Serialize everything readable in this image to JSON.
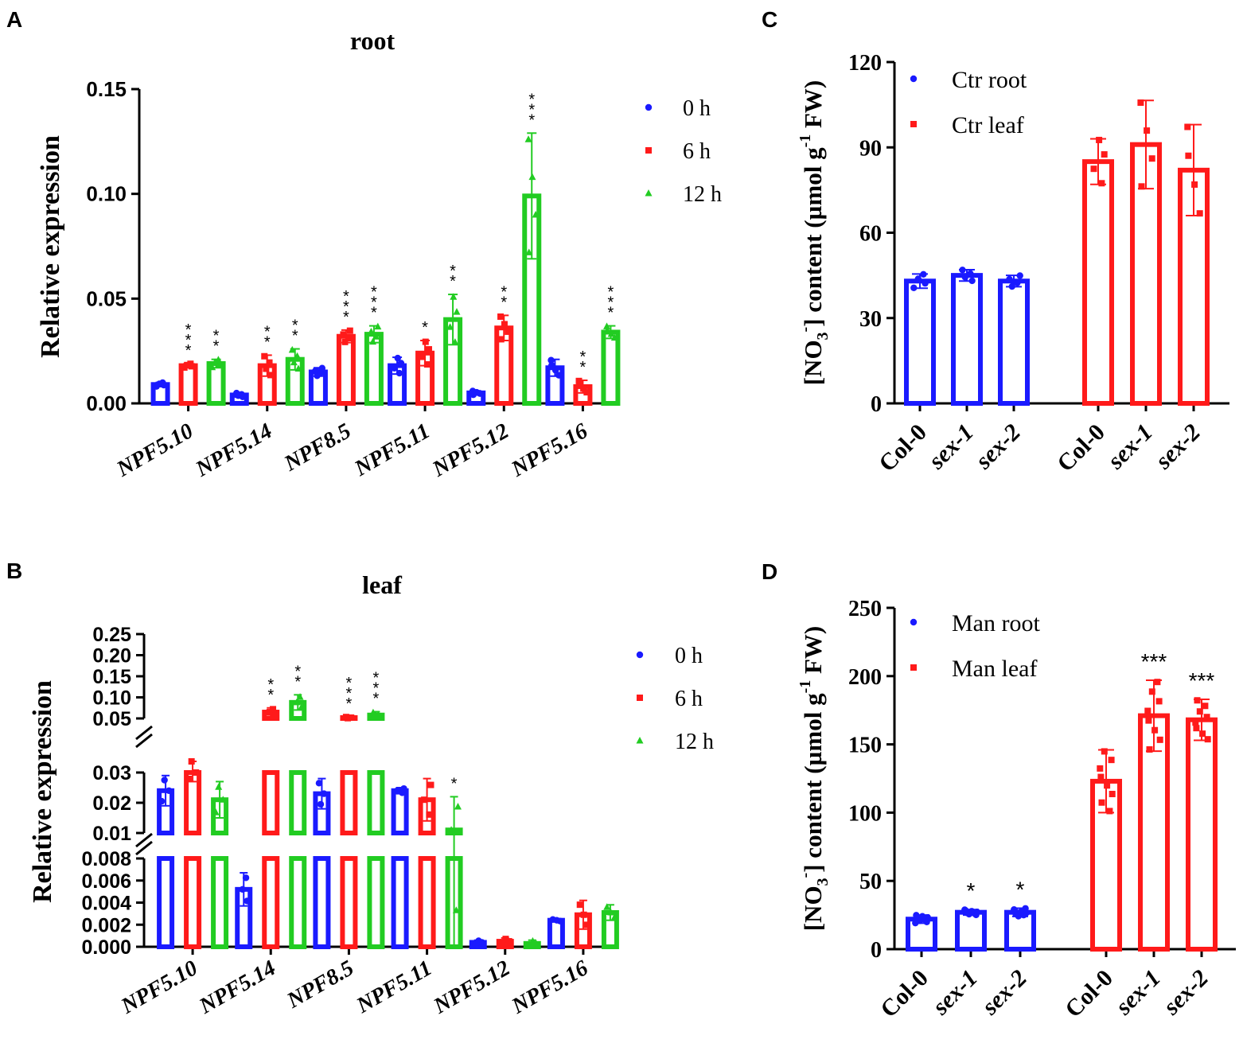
{
  "colors": {
    "blue": "#1a1aff",
    "red": "#ff1a1a",
    "green": "#22cc22",
    "axis": "#000000"
  },
  "chart_data": [
    {
      "panel_label": "A",
      "type": "bar",
      "title": "root",
      "xlabel": "",
      "ylabel": "Relative expression",
      "ylim": [
        0,
        0.15
      ],
      "yticks": [
        "0.00",
        "0.05",
        "0.10",
        "0.15"
      ],
      "categories": [
        "NPF5.10",
        "NPF5.14",
        "NPF8.5",
        "NPF5.11",
        "NPF5.12",
        "NPF5.16"
      ],
      "legend": [
        "0 h",
        "6 h",
        "12 h"
      ],
      "legend_position": "top-right",
      "series": [
        {
          "name": "0 h",
          "color": "blue",
          "marker": "circle",
          "values": [
            0.009,
            0.004,
            0.015,
            0.018,
            0.005,
            0.017
          ],
          "errors": [
            0.001,
            0.001,
            0.002,
            0.004,
            0.001,
            0.004
          ],
          "significance": [
            "",
            "",
            "",
            "",
            "",
            ""
          ]
        },
        {
          "name": "6 h",
          "color": "red",
          "marker": "square",
          "values": [
            0.018,
            0.018,
            0.032,
            0.024,
            0.036,
            0.008
          ],
          "errors": [
            0.001,
            0.005,
            0.003,
            0.006,
            0.006,
            0.003
          ],
          "significance": [
            "***",
            "**",
            "***",
            "*",
            "**",
            "**"
          ]
        },
        {
          "name": "12 h",
          "color": "green",
          "marker": "triangle",
          "values": [
            0.019,
            0.021,
            0.033,
            0.04,
            0.099,
            0.034
          ],
          "errors": [
            0.002,
            0.005,
            0.004,
            0.012,
            0.03,
            0.003
          ],
          "significance": [
            "**",
            "**",
            "***",
            "**",
            "***",
            "***"
          ]
        }
      ]
    },
    {
      "panel_label": "B",
      "type": "bar",
      "title": "leaf",
      "xlabel": "",
      "ylabel": "Relative expression",
      "ylim": [
        0,
        0.25
      ],
      "axis_breaks": [
        [
          0.008,
          0.01
        ],
        [
          0.03,
          0.05
        ]
      ],
      "yticks": [
        "0.000",
        "0.002",
        "0.004",
        "0.006",
        "0.008",
        "0.01",
        "0.02",
        "0.03",
        "0.05",
        "0.10",
        "0.15",
        "0.20",
        "0.25"
      ],
      "categories": [
        "NPF5.10",
        "NPF5.14",
        "NPF8.5",
        "NPF5.11",
        "NPF5.12",
        "NPF5.16"
      ],
      "legend": [
        "0 h",
        "6 h",
        "12 h"
      ],
      "legend_position": "top-right",
      "series": [
        {
          "name": "0 h",
          "color": "blue",
          "marker": "circle",
          "values": [
            0.024,
            0.0052,
            0.023,
            0.024,
            0.0004,
            0.0024
          ],
          "errors": [
            0.005,
            0.0015,
            0.005,
            0.001,
            0.0002,
            0.0001
          ],
          "significance": [
            "",
            "",
            "",
            "",
            "",
            ""
          ]
        },
        {
          "name": "6 h",
          "color": "red",
          "marker": "square",
          "values": [
            0.03,
            0.065,
            0.052,
            0.021,
            0.0005,
            0.0029
          ],
          "errors": [
            0.003,
            0.01,
            0.002,
            0.007,
            0.0003,
            0.0013
          ],
          "significance": [
            "",
            "**",
            "***",
            "",
            "",
            ""
          ]
        },
        {
          "name": "12 h",
          "color": "green",
          "marker": "triangle",
          "values": [
            0.021,
            0.088,
            0.058,
            0.011,
            0.0003,
            0.0031
          ],
          "errors": [
            0.006,
            0.018,
            0.008,
            0.011,
            0.0003,
            0.0007
          ],
          "significance": [
            "",
            "**",
            "***",
            "*",
            "",
            ""
          ]
        }
      ]
    },
    {
      "panel_label": "C",
      "type": "bar",
      "title": "",
      "xlabel": "",
      "ylabel_pre": "[NO",
      "ylabel_sub": "3",
      "ylabel_sup1": "-",
      "ylabel_mid": "] content (µmol g",
      "ylabel_sup2": "-1",
      "ylabel_post": " FW)",
      "ylim": [
        0,
        120
      ],
      "yticks": [
        "0",
        "30",
        "60",
        "90",
        "120"
      ],
      "categories": [
        "Col-0",
        "sex-1",
        "sex-2",
        "Col-0",
        "sex-1",
        "sex-2"
      ],
      "legend": [
        "Ctr root",
        "Ctr leaf"
      ],
      "legend_position": "top-left",
      "series": [
        {
          "name": "Ctr root",
          "color": "blue",
          "marker": "circle",
          "values": [
            43,
            45,
            43,
            null,
            null,
            null
          ],
          "errors": [
            2.5,
            2,
            2,
            null,
            null,
            null
          ],
          "significance": [
            "",
            "",
            "",
            "",
            "",
            ""
          ]
        },
        {
          "name": "Ctr leaf",
          "color": "red",
          "marker": "square",
          "values": [
            null,
            null,
            null,
            85,
            91,
            82
          ],
          "errors": [
            null,
            null,
            null,
            8,
            15.5,
            16
          ],
          "significance": [
            "",
            "",
            "",
            "",
            "",
            ""
          ]
        }
      ]
    },
    {
      "panel_label": "D",
      "type": "bar",
      "title": "",
      "xlabel": "",
      "ylabel_pre": "[NO",
      "ylabel_sub": "3",
      "ylabel_sup1": "-",
      "ylabel_mid": "] content (µmol g",
      "ylabel_sup2": "-1",
      "ylabel_post": " FW)",
      "ylim": [
        0,
        250
      ],
      "yticks": [
        "0",
        "50",
        "100",
        "150",
        "200",
        "250"
      ],
      "categories": [
        "Col-0",
        "sex-1",
        "sex-2",
        "Col-0",
        "sex-1",
        "sex-2"
      ],
      "legend": [
        "Man root",
        "Man leaf"
      ],
      "legend_position": "top-left",
      "series": [
        {
          "name": "Man root",
          "color": "blue",
          "marker": "circle",
          "values": [
            22,
            27,
            27,
            null,
            null,
            null
          ],
          "errors": [
            3,
            2,
            3,
            null,
            null,
            null
          ],
          "significance": [
            "",
            "*",
            "*",
            "",
            "",
            ""
          ]
        },
        {
          "name": "Man leaf",
          "color": "red",
          "marker": "square",
          "values": [
            null,
            null,
            null,
            123,
            171,
            168
          ],
          "errors": [
            null,
            null,
            null,
            23,
            26,
            15
          ],
          "significance": [
            "",
            "",
            "",
            "",
            "***",
            "***"
          ]
        }
      ]
    }
  ]
}
